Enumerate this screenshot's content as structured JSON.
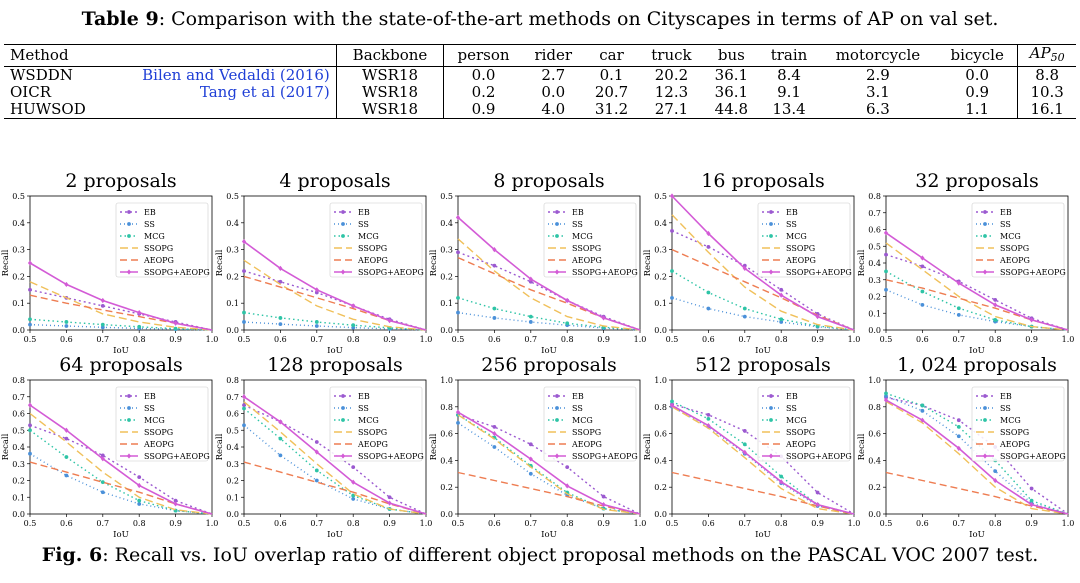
{
  "table": {
    "caption_label": "Table 9",
    "caption_text": ": Comparison with the state-of-the-art methods on Cityscapes in terms of AP on val set.",
    "headers": [
      "Method",
      "Backbone",
      "person",
      "rider",
      "car",
      "truck",
      "bus",
      "train",
      "motorcycle",
      "bicycle",
      "AP50"
    ],
    "rows": [
      {
        "method": "WSDDN",
        "citation": "Bilen and Vedaldi (2016)",
        "backbone": "WSR18",
        "values": [
          "0.0",
          "2.7",
          "0.1",
          "20.2",
          "36.1",
          "8.4",
          "2.9",
          "0.0"
        ],
        "ap50": "8.8"
      },
      {
        "method": "OICR",
        "citation": "Tang et al (2017)",
        "backbone": "WSR18",
        "values": [
          "0.2",
          "0.0",
          "20.7",
          "12.3",
          "36.1",
          "9.1",
          "3.1",
          "0.9"
        ],
        "ap50": "10.3"
      },
      {
        "method": "HUWSOD",
        "citation": "",
        "backbone": "WSR18",
        "values": [
          "0.9",
          "4.0",
          "31.2",
          "27.1",
          "44.8",
          "13.4",
          "6.3",
          "1.1"
        ],
        "ap50": "16.1"
      }
    ]
  },
  "figure": {
    "caption_label": "Fig. 6",
    "caption_text": ": Recall vs. IoU overlap ratio of different object proposal methods on the PASCAL VOC 2007 test."
  },
  "colors": {
    "EB": "#9b59d0",
    "SS": "#4a90d9",
    "MCG": "#2ec4a6",
    "SSOPG": "#f0c05a",
    "AEOPG": "#ee7d52",
    "SSOPG+AEOPG": "#d35bd6"
  },
  "chart_data": [
    {
      "type": "line",
      "title": "2 proposals",
      "xlabel": "IoU",
      "ylabel": "Recall",
      "x": [
        0.5,
        0.6,
        0.7,
        0.8,
        0.9,
        1.0
      ],
      "xlim": [
        0.5,
        1.0
      ],
      "ylim": [
        0,
        0.5
      ],
      "xticks": [
        "0.5",
        "0.6",
        "0.7",
        "0.8",
        "0.9",
        "1.0"
      ],
      "yticks": [
        "0.0",
        "0.1",
        "0.2",
        "0.3",
        "0.4",
        "0.5"
      ],
      "series": [
        {
          "name": "EB",
          "values": [
            0.15,
            0.12,
            0.09,
            0.06,
            0.03,
            0.0
          ]
        },
        {
          "name": "SS",
          "values": [
            0.02,
            0.015,
            0.01,
            0.006,
            0.003,
            0.0
          ]
        },
        {
          "name": "MCG",
          "values": [
            0.04,
            0.03,
            0.02,
            0.012,
            0.005,
            0.0
          ]
        },
        {
          "name": "SSOPG",
          "values": [
            0.18,
            0.12,
            0.06,
            0.03,
            0.01,
            0.0
          ]
        },
        {
          "name": "AEOPG",
          "values": [
            0.13,
            0.1,
            0.075,
            0.05,
            0.025,
            0.0
          ]
        },
        {
          "name": "SSOPG+AEOPG",
          "values": [
            0.25,
            0.17,
            0.11,
            0.065,
            0.025,
            0.0
          ]
        }
      ]
    },
    {
      "type": "line",
      "title": "4 proposals",
      "xlabel": "IoU",
      "ylabel": "Recall",
      "x": [
        0.5,
        0.6,
        0.7,
        0.8,
        0.9,
        1.0
      ],
      "xlim": [
        0.5,
        1.0
      ],
      "ylim": [
        0,
        0.5
      ],
      "xticks": [
        "0.5",
        "0.6",
        "0.7",
        "0.8",
        "0.9",
        "1.0"
      ],
      "yticks": [
        "0.0",
        "0.1",
        "0.2",
        "0.3",
        "0.4",
        "0.5"
      ],
      "series": [
        {
          "name": "EB",
          "values": [
            0.22,
            0.18,
            0.14,
            0.09,
            0.04,
            0.0
          ]
        },
        {
          "name": "SS",
          "values": [
            0.03,
            0.022,
            0.015,
            0.009,
            0.004,
            0.0
          ]
        },
        {
          "name": "MCG",
          "values": [
            0.065,
            0.045,
            0.03,
            0.018,
            0.008,
            0.0
          ]
        },
        {
          "name": "SSOPG",
          "values": [
            0.26,
            0.17,
            0.09,
            0.04,
            0.012,
            0.0
          ]
        },
        {
          "name": "AEOPG",
          "values": [
            0.2,
            0.16,
            0.12,
            0.08,
            0.035,
            0.0
          ]
        },
        {
          "name": "SSOPG+AEOPG",
          "values": [
            0.33,
            0.23,
            0.15,
            0.09,
            0.035,
            0.0
          ]
        }
      ]
    },
    {
      "type": "line",
      "title": "8 proposals",
      "xlabel": "IoU",
      "ylabel": "Recall",
      "x": [
        0.5,
        0.6,
        0.7,
        0.8,
        0.9,
        1.0
      ],
      "xlim": [
        0.5,
        1.0
      ],
      "ylim": [
        0,
        0.5
      ],
      "xticks": [
        "0.5",
        "0.6",
        "0.7",
        "0.8",
        "0.9",
        "1.0"
      ],
      "yticks": [
        "0.0",
        "0.1",
        "0.2",
        "0.3",
        "0.4",
        "0.5"
      ],
      "series": [
        {
          "name": "EB",
          "values": [
            0.29,
            0.24,
            0.18,
            0.11,
            0.05,
            0.0
          ]
        },
        {
          "name": "SS",
          "values": [
            0.065,
            0.045,
            0.03,
            0.018,
            0.007,
            0.0
          ]
        },
        {
          "name": "MCG",
          "values": [
            0.12,
            0.08,
            0.05,
            0.025,
            0.01,
            0.0
          ]
        },
        {
          "name": "SSOPG",
          "values": [
            0.34,
            0.22,
            0.12,
            0.05,
            0.015,
            0.0
          ]
        },
        {
          "name": "AEOPG",
          "values": [
            0.27,
            0.21,
            0.15,
            0.1,
            0.045,
            0.0
          ]
        },
        {
          "name": "SSOPG+AEOPG",
          "values": [
            0.42,
            0.3,
            0.19,
            0.11,
            0.045,
            0.0
          ]
        }
      ]
    },
    {
      "type": "line",
      "title": "16 proposals",
      "xlabel": "IoU",
      "ylabel": "Recall",
      "x": [
        0.5,
        0.6,
        0.7,
        0.8,
        0.9,
        1.0
      ],
      "xlim": [
        0.5,
        1.0
      ],
      "ylim": [
        0,
        0.5
      ],
      "xticks": [
        "0.5",
        "0.6",
        "0.7",
        "0.8",
        "0.9",
        "1.0"
      ],
      "yticks": [
        "0.0",
        "0.1",
        "0.2",
        "0.3",
        "0.4",
        "0.5"
      ],
      "series": [
        {
          "name": "EB",
          "values": [
            0.37,
            0.31,
            0.24,
            0.15,
            0.06,
            0.0
          ]
        },
        {
          "name": "SS",
          "values": [
            0.12,
            0.08,
            0.05,
            0.03,
            0.012,
            0.0
          ]
        },
        {
          "name": "MCG",
          "values": [
            0.22,
            0.14,
            0.08,
            0.04,
            0.015,
            0.0
          ]
        },
        {
          "name": "SSOPG",
          "values": [
            0.43,
            0.29,
            0.16,
            0.07,
            0.02,
            0.0
          ]
        },
        {
          "name": "AEOPG",
          "values": [
            0.3,
            0.24,
            0.18,
            0.12,
            0.055,
            0.0
          ]
        },
        {
          "name": "SSOPG+AEOPG",
          "values": [
            0.5,
            0.36,
            0.23,
            0.13,
            0.05,
            0.0
          ]
        }
      ]
    },
    {
      "type": "line",
      "title": "32 proposals",
      "xlabel": "IoU",
      "ylabel": "Recall",
      "x": [
        0.5,
        0.6,
        0.7,
        0.8,
        0.9,
        1.0
      ],
      "xlim": [
        0.5,
        1.0
      ],
      "ylim": [
        0,
        0.8
      ],
      "xticks": [
        "0.5",
        "0.6",
        "0.7",
        "0.8",
        "0.9",
        "1.0"
      ],
      "yticks": [
        "0.0",
        "0.1",
        "0.2",
        "0.3",
        "0.4",
        "0.5",
        "0.6",
        "0.7",
        "0.8"
      ],
      "series": [
        {
          "name": "EB",
          "values": [
            0.45,
            0.38,
            0.29,
            0.18,
            0.07,
            0.0
          ]
        },
        {
          "name": "SS",
          "values": [
            0.24,
            0.15,
            0.09,
            0.05,
            0.02,
            0.0
          ]
        },
        {
          "name": "MCG",
          "values": [
            0.35,
            0.23,
            0.13,
            0.06,
            0.02,
            0.0
          ]
        },
        {
          "name": "SSOPG",
          "values": [
            0.52,
            0.36,
            0.2,
            0.08,
            0.02,
            0.0
          ]
        },
        {
          "name": "AEOPG",
          "values": [
            0.3,
            0.25,
            0.19,
            0.13,
            0.06,
            0.0
          ]
        },
        {
          "name": "SSOPG+AEOPG",
          "values": [
            0.58,
            0.43,
            0.28,
            0.15,
            0.06,
            0.0
          ]
        }
      ]
    },
    {
      "type": "line",
      "title": "64 proposals",
      "xlabel": "IoU",
      "ylabel": "Recall",
      "x": [
        0.5,
        0.6,
        0.7,
        0.8,
        0.9,
        1.0
      ],
      "xlim": [
        0.5,
        1.0
      ],
      "ylim": [
        0,
        0.8
      ],
      "xticks": [
        "0.5",
        "0.6",
        "0.7",
        "0.8",
        "0.9",
        "1.0"
      ],
      "yticks": [
        "0.0",
        "0.1",
        "0.2",
        "0.3",
        "0.4",
        "0.5",
        "0.6",
        "0.7",
        "0.8"
      ],
      "series": [
        {
          "name": "EB",
          "values": [
            0.53,
            0.45,
            0.35,
            0.22,
            0.08,
            0.0
          ]
        },
        {
          "name": "SS",
          "values": [
            0.36,
            0.23,
            0.13,
            0.06,
            0.02,
            0.0
          ]
        },
        {
          "name": "MCG",
          "values": [
            0.5,
            0.34,
            0.19,
            0.08,
            0.02,
            0.0
          ]
        },
        {
          "name": "SSOPG",
          "values": [
            0.6,
            0.43,
            0.25,
            0.1,
            0.025,
            0.0
          ]
        },
        {
          "name": "AEOPG",
          "values": [
            0.31,
            0.25,
            0.19,
            0.13,
            0.06,
            0.0
          ]
        },
        {
          "name": "SSOPG+AEOPG",
          "values": [
            0.65,
            0.5,
            0.33,
            0.17,
            0.06,
            0.0
          ]
        }
      ]
    },
    {
      "type": "line",
      "title": "128 proposals",
      "xlabel": "IoU",
      "ylabel": "Recall",
      "x": [
        0.5,
        0.6,
        0.7,
        0.8,
        0.9,
        1.0
      ],
      "xlim": [
        0.5,
        1.0
      ],
      "ylim": [
        0,
        0.8
      ],
      "xticks": [
        "0.5",
        "0.6",
        "0.7",
        "0.8",
        "0.9",
        "1.0"
      ],
      "yticks": [
        "0.0",
        "0.1",
        "0.2",
        "0.3",
        "0.4",
        "0.5",
        "0.6",
        "0.7",
        "0.8"
      ],
      "series": [
        {
          "name": "EB",
          "values": [
            0.65,
            0.55,
            0.43,
            0.28,
            0.1,
            0.0
          ]
        },
        {
          "name": "SS",
          "values": [
            0.53,
            0.35,
            0.2,
            0.09,
            0.03,
            0.0
          ]
        },
        {
          "name": "MCG",
          "values": [
            0.63,
            0.45,
            0.26,
            0.11,
            0.03,
            0.0
          ]
        },
        {
          "name": "SSOPG",
          "values": [
            0.67,
            0.49,
            0.3,
            0.12,
            0.03,
            0.0
          ]
        },
        {
          "name": "AEOPG",
          "values": [
            0.31,
            0.25,
            0.19,
            0.13,
            0.06,
            0.0
          ]
        },
        {
          "name": "SSOPG+AEOPG",
          "values": [
            0.7,
            0.55,
            0.37,
            0.19,
            0.065,
            0.0
          ]
        }
      ]
    },
    {
      "type": "line",
      "title": "256 proposals",
      "xlabel": "IoU",
      "ylabel": "Recall",
      "x": [
        0.5,
        0.6,
        0.7,
        0.8,
        0.9,
        1.0
      ],
      "xlim": [
        0.5,
        1.0
      ],
      "ylim": [
        0,
        1.0
      ],
      "xticks": [
        "0.5",
        "0.6",
        "0.7",
        "0.8",
        "0.9",
        "1.0"
      ],
      "yticks": [
        "0.0",
        "0.2",
        "0.4",
        "0.6",
        "0.8",
        "1.0"
      ],
      "series": [
        {
          "name": "EB",
          "values": [
            0.74,
            0.65,
            0.52,
            0.35,
            0.13,
            0.0
          ]
        },
        {
          "name": "SS",
          "values": [
            0.68,
            0.5,
            0.3,
            0.14,
            0.04,
            0.0
          ]
        },
        {
          "name": "MCG",
          "values": [
            0.74,
            0.57,
            0.36,
            0.16,
            0.04,
            0.0
          ]
        },
        {
          "name": "SSOPG",
          "values": [
            0.74,
            0.56,
            0.35,
            0.15,
            0.035,
            0.0
          ]
        },
        {
          "name": "AEOPG",
          "values": [
            0.31,
            0.25,
            0.19,
            0.13,
            0.06,
            0.0
          ]
        },
        {
          "name": "SSOPG+AEOPG",
          "values": [
            0.76,
            0.6,
            0.41,
            0.21,
            0.07,
            0.0
          ]
        }
      ]
    },
    {
      "type": "line",
      "title": "512 proposals",
      "xlabel": "IoU",
      "ylabel": "Recall",
      "x": [
        0.5,
        0.6,
        0.7,
        0.8,
        0.9,
        1.0
      ],
      "xlim": [
        0.5,
        1.0
      ],
      "ylim": [
        0,
        1.0
      ],
      "xticks": [
        "0.5",
        "0.6",
        "0.7",
        "0.8",
        "0.9",
        "1.0"
      ],
      "yticks": [
        "0.0",
        "0.2",
        "0.4",
        "0.6",
        "0.8",
        "1.0"
      ],
      "series": [
        {
          "name": "EB",
          "values": [
            0.82,
            0.74,
            0.62,
            0.43,
            0.16,
            0.0
          ]
        },
        {
          "name": "SS",
          "values": [
            0.8,
            0.65,
            0.45,
            0.23,
            0.06,
            0.0
          ]
        },
        {
          "name": "MCG",
          "values": [
            0.84,
            0.71,
            0.52,
            0.28,
            0.07,
            0.0
          ]
        },
        {
          "name": "SSOPG",
          "values": [
            0.8,
            0.64,
            0.42,
            0.19,
            0.04,
            0.0
          ]
        },
        {
          "name": "AEOPG",
          "values": [
            0.31,
            0.25,
            0.19,
            0.13,
            0.06,
            0.0
          ]
        },
        {
          "name": "SSOPG+AEOPG",
          "values": [
            0.81,
            0.66,
            0.46,
            0.24,
            0.07,
            0.0
          ]
        }
      ]
    },
    {
      "type": "line",
      "title": "1, 024 proposals",
      "xlabel": "IoU",
      "ylabel": "Recall",
      "x": [
        0.5,
        0.6,
        0.7,
        0.8,
        0.9,
        1.0
      ],
      "xlim": [
        0.5,
        1.0
      ],
      "ylim": [
        0,
        1.0
      ],
      "xticks": [
        "0.5",
        "0.6",
        "0.7",
        "0.8",
        "0.9",
        "1.0"
      ],
      "yticks": [
        "0.0",
        "0.2",
        "0.4",
        "0.6",
        "0.8",
        "1.0"
      ],
      "series": [
        {
          "name": "EB",
          "values": [
            0.87,
            0.81,
            0.7,
            0.5,
            0.19,
            0.0
          ]
        },
        {
          "name": "SS",
          "values": [
            0.88,
            0.77,
            0.58,
            0.32,
            0.08,
            0.0
          ]
        },
        {
          "name": "MCG",
          "values": [
            0.9,
            0.81,
            0.65,
            0.4,
            0.1,
            0.0
          ]
        },
        {
          "name": "SSOPG",
          "values": [
            0.84,
            0.68,
            0.45,
            0.2,
            0.04,
            0.0
          ]
        },
        {
          "name": "AEOPG",
          "values": [
            0.31,
            0.25,
            0.19,
            0.13,
            0.06,
            0.0
          ]
        },
        {
          "name": "SSOPG+AEOPG",
          "values": [
            0.85,
            0.7,
            0.49,
            0.25,
            0.07,
            0.0
          ]
        }
      ]
    }
  ]
}
